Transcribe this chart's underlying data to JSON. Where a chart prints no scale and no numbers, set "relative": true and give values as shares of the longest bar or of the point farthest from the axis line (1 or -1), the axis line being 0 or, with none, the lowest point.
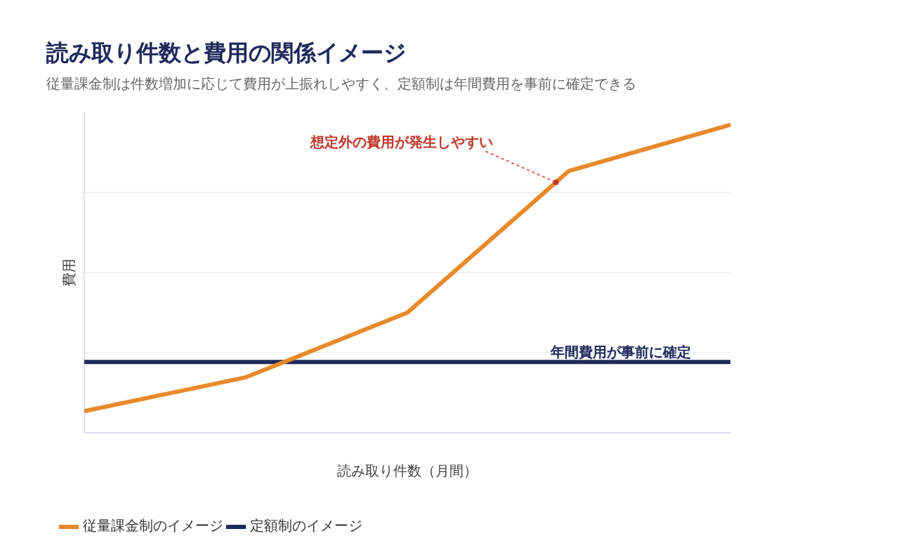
{
  "chart_data": {
    "type": "line",
    "title": "読み取り件数と費用の関係イメージ",
    "subtitle": "従量課金制は件数増加に応じて費用が上振れしやすく、定額制は年間費用を事前に確定できる",
    "xlabel": "読み取り件数（月間）",
    "ylabel": "費用",
    "relative": true,
    "categories": [
      null,
      null,
      null,
      null,
      null
    ],
    "series": [
      {
        "name": "従量課金制のイメージ",
        "color": "#e8892b",
        "values": [
          0.07,
          0.18,
          0.39,
          0.85,
          1
        ]
      },
      {
        "name": "定額制のイメージ",
        "color": "#1f2a5c",
        "values": [
          0.23,
          0.23,
          0.23,
          0.23,
          0.23
        ]
      }
    ],
    "annotations": [
      "想定外の費用が発生しやすい",
      {
        "text": "年間費用が事前に確定",
        "y": 0.23
      }
    ],
    "grid": "y",
    "legend": "bottom left",
    "marker": "none",
    "line_style": "solid"
  }
}
